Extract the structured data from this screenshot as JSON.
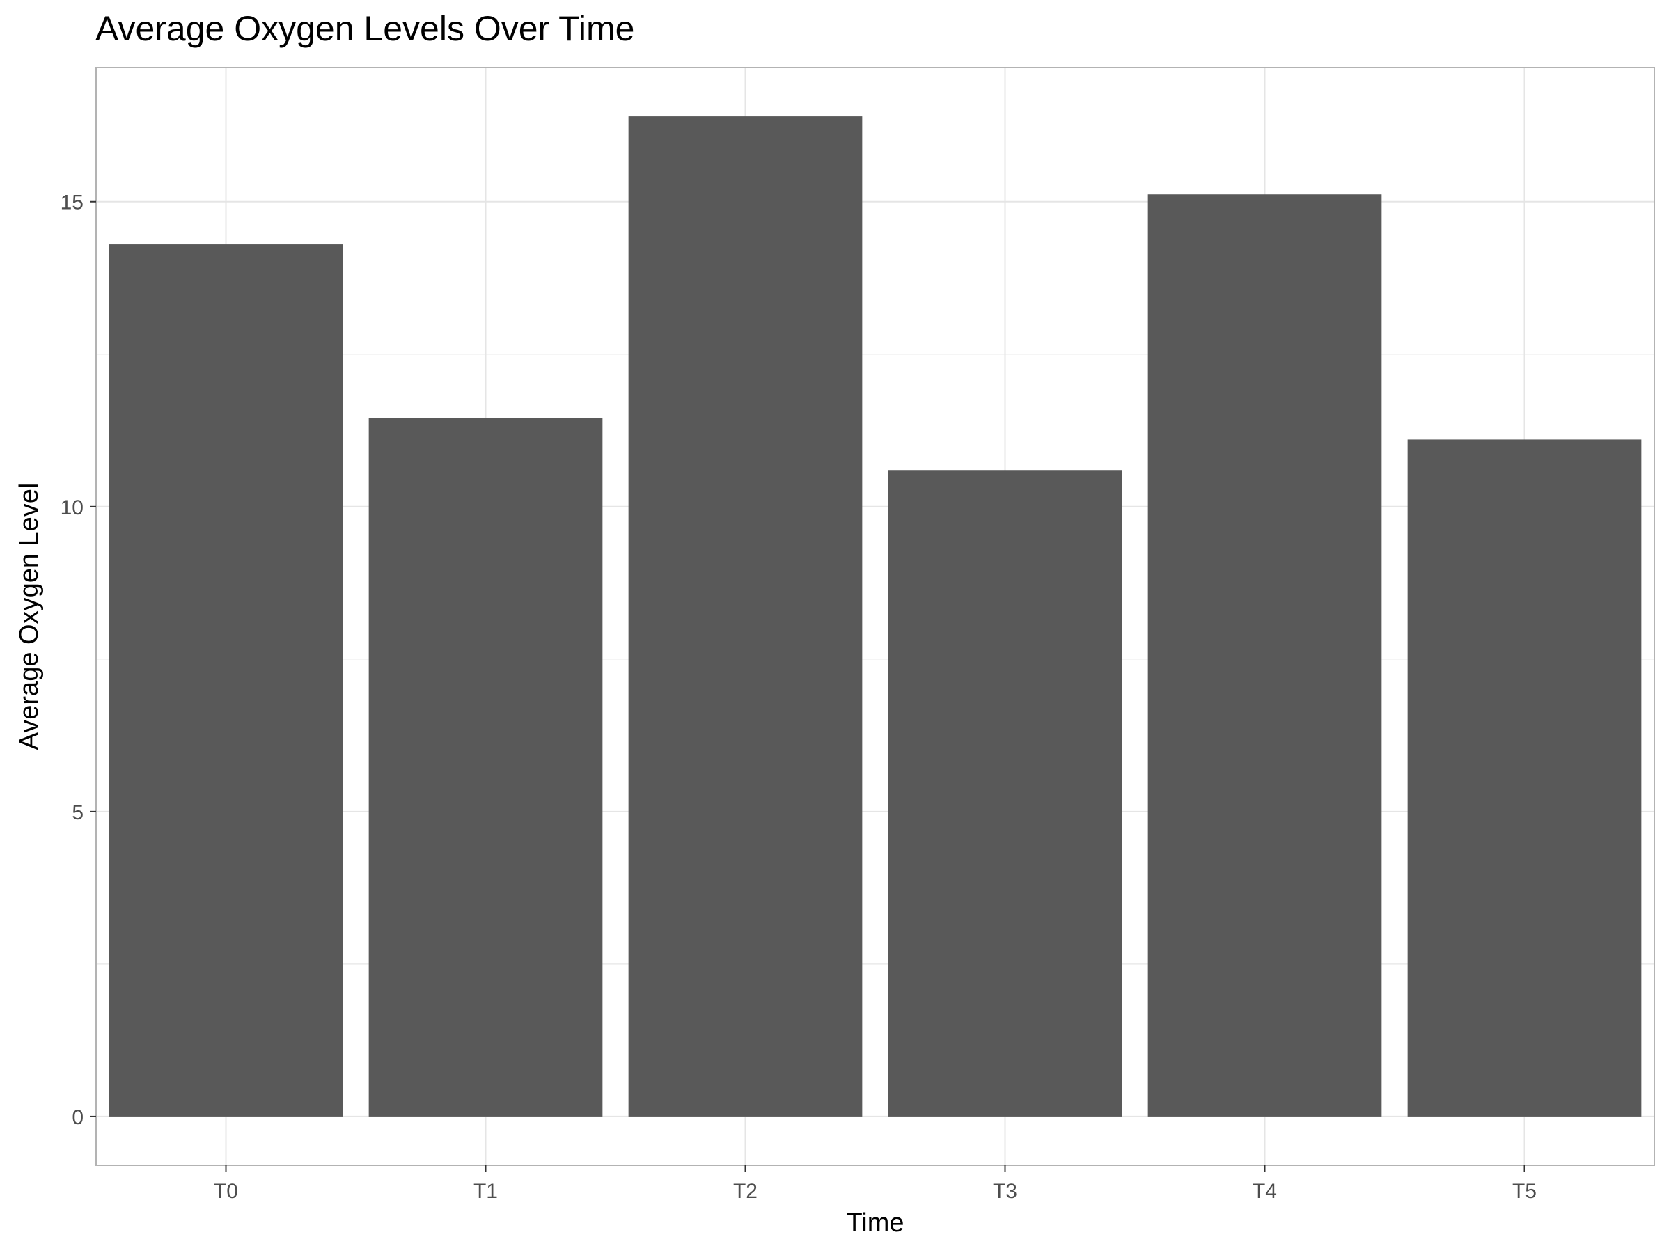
{
  "chart_data": {
    "type": "bar",
    "title": "Average Oxygen Levels Over Time",
    "xlabel": "Time",
    "ylabel": "Average Oxygen Level",
    "categories": [
      "T0",
      "T1",
      "T2",
      "T3",
      "T4",
      "T5"
    ],
    "values": [
      14.3,
      11.45,
      16.4,
      10.6,
      15.12,
      11.1
    ],
    "ylim": [
      -0.8,
      17.2
    ],
    "yticks": [
      0,
      5,
      10,
      15
    ],
    "ytick_labels": [
      "0",
      "5",
      "10",
      "15"
    ],
    "grid": true,
    "legend": "none",
    "colors": {
      "bar": "#595959",
      "grid": "#e5e5e5",
      "panel_border": "#b3b3b3",
      "tick_text": "#4d4d4d",
      "axis_title": "#000000"
    }
  }
}
